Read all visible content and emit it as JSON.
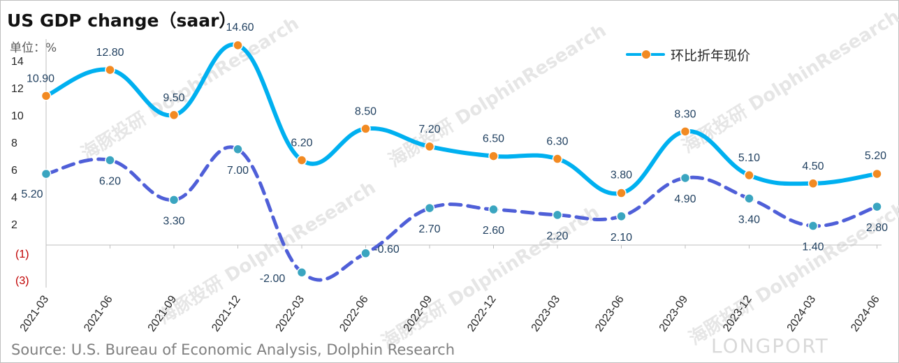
{
  "title": "US GDP change（saar）",
  "unit_label": "单位：%",
  "source": "Source: U.S. Bureau of Economic Analysis, Dolphin Research",
  "watermark": "海豚投研 DolphinResearch",
  "brand": "LONGPORT",
  "legend": {
    "label": "环比折年现价",
    "color": "#00b0f0",
    "marker_color": "#f28a22"
  },
  "chart_data": {
    "type": "line",
    "categories": [
      "2021-03",
      "2021-06",
      "2021-09",
      "2021-12",
      "2022-03",
      "2022-06",
      "2022-09",
      "2022-12",
      "2023-03",
      "2023-06",
      "2023-09",
      "2023-12",
      "2024-03",
      "2024-06"
    ],
    "y_ticks": [
      "14",
      "12",
      "10",
      "8",
      "6",
      "4",
      "2",
      "(1)",
      "(3)"
    ],
    "series": [
      {
        "name": "环比折年现价",
        "style": "solid",
        "color": "#00b0f0",
        "marker_color": "#f28a22",
        "values": [
          10.9,
          12.8,
          9.5,
          14.6,
          6.2,
          8.5,
          7.2,
          6.5,
          6.3,
          3.8,
          8.3,
          5.1,
          4.5,
          5.2
        ],
        "labels": [
          "10.90",
          "12.80",
          "9.50",
          "14.60",
          "6.20",
          "8.50",
          "7.20",
          "6.50",
          "6.30",
          "3.80",
          "8.30",
          "5.10",
          "4.50",
          "5.20"
        ]
      },
      {
        "name": "",
        "style": "dashed",
        "color": "#4f5fd8",
        "marker_color": "#3aa5c0",
        "values": [
          5.2,
          6.2,
          3.3,
          7.0,
          -2.0,
          -0.6,
          2.7,
          2.6,
          2.2,
          2.1,
          4.9,
          3.4,
          1.4,
          2.8
        ],
        "labels": [
          "5.20",
          "6.20",
          "3.30",
          "7.00",
          "-2.00",
          "-0.60",
          "2.70",
          "2.60",
          "2.20",
          "2.10",
          "4.90",
          "3.40",
          "1.40",
          "2.80"
        ]
      }
    ],
    "grid": false,
    "legend_position": "top-right"
  }
}
